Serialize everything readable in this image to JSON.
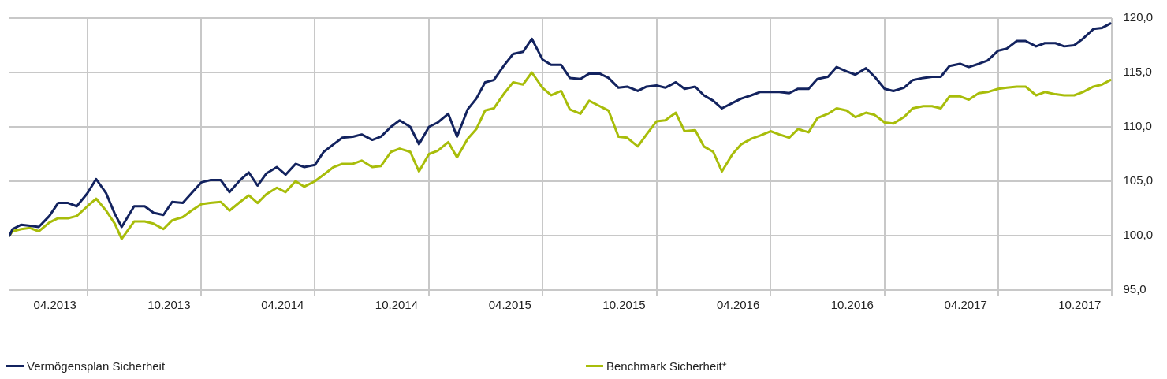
{
  "chart_data": {
    "type": "line",
    "x": [
      "2013-01-27",
      "2013-02-01",
      "2013-02-15",
      "2013-03-01",
      "2013-03-15",
      "2013-04-01",
      "2013-04-15",
      "2013-05-01",
      "2013-05-15",
      "2013-06-01",
      "2013-06-15",
      "2013-07-01",
      "2013-07-15",
      "2013-07-26",
      "2013-08-15",
      "2013-09-01",
      "2013-09-15",
      "2013-10-01",
      "2013-10-15",
      "2013-11-01",
      "2013-11-15",
      "2013-12-01",
      "2013-12-15",
      "2014-01-01",
      "2014-01-15",
      "2014-02-01",
      "2014-02-15",
      "2014-03-01",
      "2014-03-15",
      "2014-04-01",
      "2014-04-15",
      "2014-05-01",
      "2014-05-15",
      "2014-06-01",
      "2014-06-15",
      "2014-07-01",
      "2014-07-15",
      "2014-08-01",
      "2014-08-15",
      "2014-09-01",
      "2014-09-15",
      "2014-10-01",
      "2014-10-15",
      "2014-11-01",
      "2014-11-15",
      "2014-12-01",
      "2014-12-15",
      "2015-01-01",
      "2015-01-15",
      "2015-02-01",
      "2015-02-15",
      "2015-03-01",
      "2015-03-15",
      "2015-04-01",
      "2015-04-15",
      "2015-05-01",
      "2015-05-15",
      "2015-06-01",
      "2015-06-15",
      "2015-07-01",
      "2015-07-15",
      "2015-08-01",
      "2015-08-15",
      "2015-09-01",
      "2015-09-15",
      "2015-10-01",
      "2015-10-15",
      "2015-11-01",
      "2015-11-15",
      "2015-12-01",
      "2015-12-15",
      "2016-01-01",
      "2016-01-15",
      "2016-02-01",
      "2016-02-15",
      "2016-03-01",
      "2016-03-15",
      "2016-04-01",
      "2016-04-15",
      "2016-05-01",
      "2016-05-15",
      "2016-06-01",
      "2016-06-15",
      "2016-07-01",
      "2016-07-15",
      "2016-08-01",
      "2016-08-15",
      "2016-09-01",
      "2016-09-15",
      "2016-10-01",
      "2016-10-15",
      "2016-11-01",
      "2016-11-15",
      "2016-12-01",
      "2016-12-15",
      "2017-01-01",
      "2017-01-15",
      "2017-02-01",
      "2017-02-15",
      "2017-03-01",
      "2017-03-15",
      "2017-04-01",
      "2017-04-15",
      "2017-05-01",
      "2017-05-15",
      "2017-06-01",
      "2017-06-15",
      "2017-07-01",
      "2017-07-15",
      "2017-08-01",
      "2017-08-15",
      "2017-09-01",
      "2017-09-15",
      "2017-10-01",
      "2017-10-15",
      "2017-11-01",
      "2017-11-15",
      "2017-11-28"
    ],
    "series": [
      {
        "name": "Vermögensplan Sicherheit",
        "color": "#13235f",
        "values": [
          100.0,
          100.6,
          101.0,
          100.9,
          100.8,
          101.8,
          103.0,
          103.0,
          102.7,
          103.9,
          105.2,
          103.9,
          102.0,
          100.8,
          102.7,
          102.7,
          102.1,
          101.9,
          103.1,
          103.0,
          103.9,
          104.9,
          105.1,
          105.1,
          104.0,
          105.1,
          105.8,
          104.6,
          105.7,
          106.3,
          105.6,
          106.6,
          106.3,
          106.5,
          107.7,
          108.4,
          109.0,
          109.1,
          109.3,
          108.8,
          109.1,
          110.0,
          110.6,
          110.0,
          108.4,
          110.0,
          110.4,
          111.2,
          109.1,
          111.6,
          112.6,
          114.1,
          114.3,
          115.7,
          116.7,
          116.9,
          118.1,
          116.2,
          115.7,
          115.7,
          114.5,
          114.4,
          114.9,
          114.9,
          114.5,
          113.6,
          113.7,
          113.3,
          113.7,
          113.8,
          113.6,
          114.1,
          113.5,
          113.7,
          112.9,
          112.4,
          111.7,
          112.2,
          112.6,
          112.9,
          113.2,
          113.2,
          113.2,
          113.1,
          113.5,
          113.5,
          114.4,
          114.6,
          115.5,
          115.1,
          114.8,
          115.4,
          114.6,
          113.5,
          113.3,
          113.6,
          114.3,
          114.5,
          114.6,
          114.6,
          115.6,
          115.8,
          115.5,
          115.8,
          116.1,
          117.0,
          117.2,
          117.9,
          117.9,
          117.4,
          117.7,
          117.7,
          117.4,
          117.5,
          118.1,
          119.0,
          119.1,
          119.5
        ]
      },
      {
        "name": "Benchmark Sicherheit*",
        "color": "#a8bd0a",
        "values": [
          100.0,
          100.4,
          100.6,
          100.7,
          100.4,
          101.2,
          101.6,
          101.6,
          101.8,
          102.7,
          103.4,
          102.3,
          101.1,
          99.7,
          101.3,
          101.3,
          101.1,
          100.6,
          101.4,
          101.7,
          102.3,
          102.9,
          103.0,
          103.1,
          102.3,
          103.1,
          103.7,
          103.0,
          103.8,
          104.4,
          104.0,
          105.0,
          104.5,
          105.0,
          105.6,
          106.3,
          106.6,
          106.6,
          106.9,
          106.3,
          106.4,
          107.7,
          108.0,
          107.7,
          105.9,
          107.5,
          107.8,
          108.6,
          107.2,
          108.9,
          109.8,
          111.5,
          111.7,
          113.1,
          114.1,
          113.9,
          115.0,
          113.6,
          112.9,
          113.3,
          111.6,
          111.2,
          112.4,
          111.9,
          111.5,
          109.1,
          109.0,
          108.2,
          109.3,
          110.5,
          110.6,
          111.3,
          109.6,
          109.7,
          108.2,
          107.7,
          105.9,
          107.5,
          108.4,
          108.9,
          109.2,
          109.6,
          109.3,
          109.0,
          109.8,
          109.5,
          110.8,
          111.2,
          111.7,
          111.5,
          110.9,
          111.3,
          111.1,
          110.4,
          110.3,
          110.9,
          111.7,
          111.9,
          111.9,
          111.7,
          112.8,
          112.8,
          112.5,
          113.1,
          113.2,
          113.5,
          113.6,
          113.7,
          113.7,
          112.9,
          113.2,
          113.0,
          112.9,
          112.9,
          113.2,
          113.7,
          113.9,
          114.3
        ]
      }
    ],
    "xlim": [
      "2013-01-27",
      "2017-12-01"
    ],
    "xticks": [
      {
        "value": "2013-04-10",
        "label": "04.2013"
      },
      {
        "value": "2013-06-01",
        "label": null
      },
      {
        "value": "2013-10-10",
        "label": "10.2013"
      },
      {
        "value": "2013-12-01",
        "label": null
      },
      {
        "value": "2014-04-10",
        "label": "04.2014"
      },
      {
        "value": "2014-06-01",
        "label": null
      },
      {
        "value": "2014-10-10",
        "label": "10.2014"
      },
      {
        "value": "2014-12-01",
        "label": null
      },
      {
        "value": "2015-04-10",
        "label": "04.2015"
      },
      {
        "value": "2015-06-01",
        "label": null
      },
      {
        "value": "2015-10-10",
        "label": "10.2015"
      },
      {
        "value": "2015-12-01",
        "label": null
      },
      {
        "value": "2016-04-10",
        "label": "04.2016"
      },
      {
        "value": "2016-06-01",
        "label": null
      },
      {
        "value": "2016-10-10",
        "label": "10.2016"
      },
      {
        "value": "2016-12-01",
        "label": null
      },
      {
        "value": "2017-04-10",
        "label": "04.2017"
      },
      {
        "value": "2017-06-01",
        "label": null
      },
      {
        "value": "2017-10-10",
        "label": "10.2017"
      },
      {
        "value": "2017-12-01",
        "label": null
      }
    ],
    "ylim": [
      95,
      120
    ],
    "yticks": [
      {
        "value": 95,
        "label": "95,0"
      },
      {
        "value": 100,
        "label": "100,0"
      },
      {
        "value": 105,
        "label": "105,0"
      },
      {
        "value": 110,
        "label": "110,0"
      },
      {
        "value": 115,
        "label": "115,0"
      },
      {
        "value": 120,
        "label": "120,0"
      }
    ],
    "grid": true,
    "legend": "bottom",
    "marker": "none",
    "line_style": "solid"
  }
}
